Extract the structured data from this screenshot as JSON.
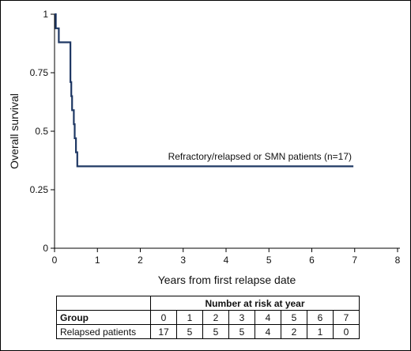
{
  "chart_data": {
    "type": "line",
    "xlabel": "Years from first relapse date",
    "ylabel": "Overall survival",
    "xlim": [
      0,
      8
    ],
    "ylim": [
      0,
      1
    ],
    "x_ticks": [
      "0",
      "1",
      "2",
      "3",
      "4",
      "5",
      "6",
      "7",
      "8"
    ],
    "y_ticks": [
      "0",
      "0.25",
      "0.5",
      "0.75",
      "1"
    ],
    "grid": false,
    "line_color": "#1f3864",
    "series": [
      {
        "name": "Refractory/relapsed or SMN patients (n=17)",
        "step": true,
        "x": [
          0,
          0.03,
          0.03,
          0.1,
          0.1,
          0.37,
          0.37,
          0.39,
          0.39,
          0.41,
          0.41,
          0.45,
          0.45,
          0.47,
          0.47,
          0.5,
          0.5,
          0.53,
          0.53,
          6.97
        ],
        "y": [
          1.0,
          1.0,
          0.94,
          0.94,
          0.88,
          0.88,
          0.71,
          0.71,
          0.65,
          0.65,
          0.59,
          0.59,
          0.53,
          0.53,
          0.47,
          0.47,
          0.41,
          0.41,
          0.35,
          0.35
        ]
      }
    ]
  },
  "risk_table": {
    "title": "Number at risk at year",
    "group_header": "Group",
    "years": [
      "0",
      "1",
      "2",
      "3",
      "4",
      "5",
      "6",
      "7"
    ],
    "row_label": "Relapsed patients",
    "counts": [
      "17",
      "5",
      "5",
      "5",
      "4",
      "2",
      "1",
      "0"
    ]
  }
}
